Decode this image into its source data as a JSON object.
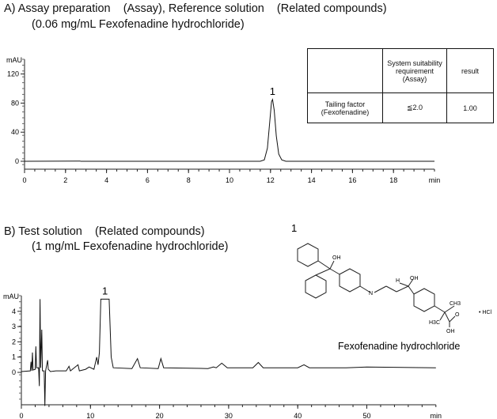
{
  "panel_a": {
    "title": "A) Assay preparation    (Assay), Reference solution    (Related compounds)",
    "subtitle": "(0.06 mg/mL Fexofenadine hydrochloride)"
  },
  "panel_b": {
    "title": "B) Test solution    (Related compounds)",
    "subtitle": "(1 mg/mL Fexofenadine hydrochloride)"
  },
  "table": {
    "header": [
      "",
      "System suitability requirement (Assay)",
      "result"
    ],
    "rows": [
      [
        "Tailing factor (Fexofenadine)",
        "≦2.0",
        "1.00"
      ]
    ]
  },
  "structure": {
    "peak_number": "1",
    "name": "Fexofenadine hydrochloride",
    "labels": {
      "oh1": "OH",
      "h": "H",
      "oh2": "OH",
      "n": "N",
      "ch3": "CH3",
      "h3c": "H3C",
      "o": "O",
      "oh3": "OH",
      "salt": "• HCl"
    }
  },
  "chart_data": [
    {
      "type": "line",
      "ylabel": "mAU",
      "xlabel": "min",
      "xlim": [
        0,
        20
      ],
      "ylim": [
        -8,
        135
      ],
      "xticks": [
        0,
        2,
        4,
        6,
        8,
        10,
        12,
        14,
        16,
        18
      ],
      "yticks": [
        0,
        40,
        80,
        120
      ],
      "peak_labels": [
        {
          "x": 12.1,
          "y": 85,
          "label": "1"
        }
      ],
      "points": [
        [
          0,
          0
        ],
        [
          2.7,
          0.3
        ],
        [
          2.75,
          0
        ],
        [
          11.5,
          0
        ],
        [
          11.7,
          2
        ],
        [
          11.85,
          18
        ],
        [
          11.95,
          50
        ],
        [
          12.05,
          82
        ],
        [
          12.1,
          85
        ],
        [
          12.18,
          70
        ],
        [
          12.28,
          35
        ],
        [
          12.4,
          10
        ],
        [
          12.55,
          2
        ],
        [
          12.75,
          0
        ],
        [
          20,
          0
        ]
      ]
    },
    {
      "type": "line",
      "ylabel": "mAU",
      "xlabel": "min",
      "xlim": [
        0,
        60
      ],
      "ylim": [
        -2.2,
        4.8
      ],
      "xticks": [
        0,
        10,
        20,
        30,
        40,
        50
      ],
      "yticks": [
        0,
        1,
        2,
        3,
        4
      ],
      "peak_labels": [
        {
          "x": 12.1,
          "y": 4.8,
          "label": "1"
        }
      ],
      "points": [
        [
          0,
          0.05
        ],
        [
          1.3,
          0.1
        ],
        [
          1.4,
          0.7
        ],
        [
          1.5,
          0.1
        ],
        [
          1.6,
          1.3
        ],
        [
          1.7,
          0.15
        ],
        [
          2.0,
          0.2
        ],
        [
          2.1,
          1.7
        ],
        [
          2.2,
          0.3
        ],
        [
          2.5,
          0.3
        ],
        [
          2.6,
          -0.9
        ],
        [
          2.7,
          4.8
        ],
        [
          2.8,
          0.3
        ],
        [
          2.95,
          2.8
        ],
        [
          3.05,
          0.1
        ],
        [
          3.3,
          0.1
        ],
        [
          3.4,
          -2.2
        ],
        [
          3.5,
          0.1
        ],
        [
          3.8,
          0.8
        ],
        [
          3.9,
          0.2
        ],
        [
          4.2,
          0.05
        ],
        [
          5,
          0.1
        ],
        [
          6.5,
          0.1
        ],
        [
          6.9,
          0.4
        ],
        [
          7.1,
          0.1
        ],
        [
          8.2,
          0.5
        ],
        [
          8.4,
          0.1
        ],
        [
          9.3,
          0.2
        ],
        [
          9.8,
          0.35
        ],
        [
          10.5,
          0.2
        ],
        [
          10.9,
          1.0
        ],
        [
          11.1,
          0.5
        ],
        [
          11.3,
          1.3
        ],
        [
          11.5,
          4.8
        ],
        [
          12.7,
          4.8
        ],
        [
          13.0,
          1.0
        ],
        [
          13.3,
          0.3
        ],
        [
          16.0,
          0.25
        ],
        [
          16.8,
          0.9
        ],
        [
          17.2,
          0.3
        ],
        [
          19.8,
          0.25
        ],
        [
          20.2,
          0.9
        ],
        [
          20.6,
          0.3
        ],
        [
          27,
          0.25
        ],
        [
          27.8,
          0.35
        ],
        [
          28.2,
          0.3
        ],
        [
          29,
          0.6
        ],
        [
          29.8,
          0.3
        ],
        [
          33.5,
          0.3
        ],
        [
          34.3,
          0.65
        ],
        [
          35,
          0.3
        ],
        [
          40,
          0.3
        ],
        [
          40.9,
          0.5
        ],
        [
          41.7,
          0.3
        ],
        [
          47,
          0.3
        ],
        [
          50,
          0.35
        ],
        [
          60,
          0.3
        ]
      ]
    }
  ]
}
